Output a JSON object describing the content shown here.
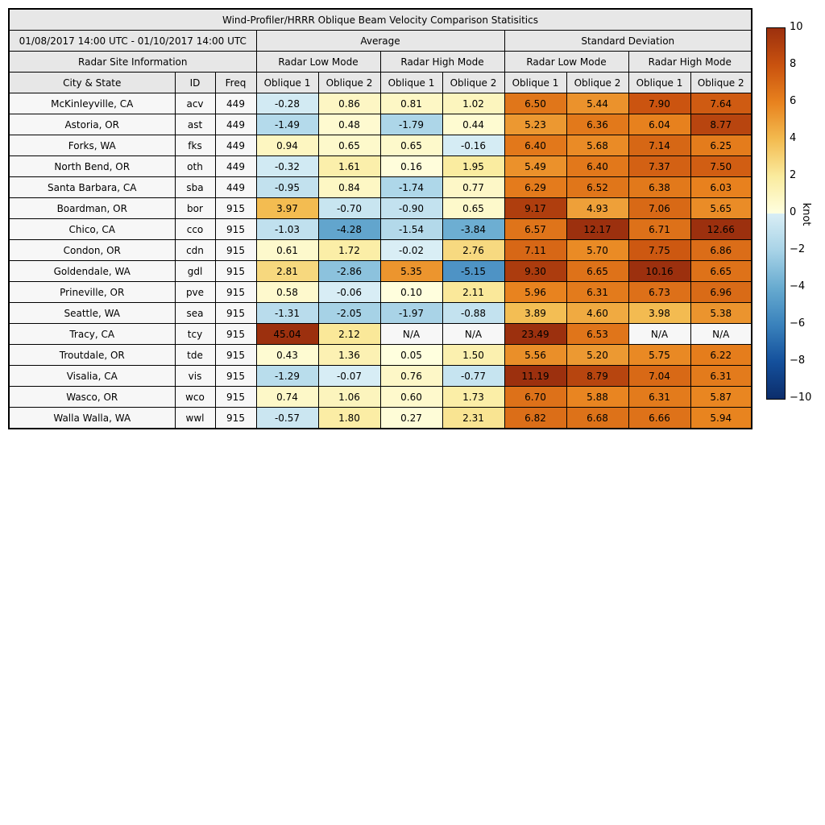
{
  "chart_data": {
    "type": "heatmap",
    "title": "Wind-Profiler/HRRR Oblique Beam Velocity Comparison Statisitics",
    "date_range": "01/08/2017 14:00 UTC - 01/10/2017 14:00 UTC",
    "group_headers": {
      "average": "Average",
      "std": "Standard Deviation"
    },
    "site_info_header": "Radar Site Information",
    "mode_headers": [
      "Radar Low Mode",
      "Radar High Mode",
      "Radar Low Mode",
      "Radar High Mode"
    ],
    "columns": [
      "City & State",
      "ID",
      "Freq",
      "Oblique 1",
      "Oblique 2",
      "Oblique 1",
      "Oblique 2",
      "Oblique 1",
      "Oblique 2",
      "Oblique 1",
      "Oblique 2"
    ],
    "rows": [
      {
        "city": "McKinleyville, CA",
        "id": "acv",
        "freq": "449",
        "values": [
          -0.28,
          0.86,
          0.81,
          1.02,
          6.5,
          5.44,
          7.9,
          7.64
        ]
      },
      {
        "city": "Astoria, OR",
        "id": "ast",
        "freq": "449",
        "values": [
          -1.49,
          0.48,
          -1.79,
          0.44,
          5.23,
          6.36,
          6.04,
          8.77
        ]
      },
      {
        "city": "Forks, WA",
        "id": "fks",
        "freq": "449",
        "values": [
          0.94,
          0.65,
          0.65,
          -0.16,
          6.4,
          5.68,
          7.14,
          6.25
        ]
      },
      {
        "city": "North Bend, OR",
        "id": "oth",
        "freq": "449",
        "values": [
          -0.32,
          1.61,
          0.16,
          1.95,
          5.49,
          6.4,
          7.37,
          7.5
        ]
      },
      {
        "city": "Santa Barbara, CA",
        "id": "sba",
        "freq": "449",
        "values": [
          -0.95,
          0.84,
          -1.74,
          0.77,
          6.29,
          6.52,
          6.38,
          6.03
        ]
      },
      {
        "city": "Boardman, OR",
        "id": "bor",
        "freq": "915",
        "values": [
          3.97,
          -0.7,
          -0.9,
          0.65,
          9.17,
          4.93,
          7.06,
          5.65
        ]
      },
      {
        "city": "Chico, CA",
        "id": "cco",
        "freq": "915",
        "values": [
          -1.03,
          -4.28,
          -1.54,
          -3.84,
          6.57,
          12.17,
          6.71,
          12.66
        ]
      },
      {
        "city": "Condon, OR",
        "id": "cdn",
        "freq": "915",
        "values": [
          0.61,
          1.72,
          -0.02,
          2.76,
          7.11,
          5.7,
          7.75,
          6.86
        ]
      },
      {
        "city": "Goldendale, WA",
        "id": "gdl",
        "freq": "915",
        "values": [
          2.81,
          -2.86,
          5.35,
          -5.15,
          9.3,
          6.65,
          10.16,
          6.65
        ]
      },
      {
        "city": "Prineville, OR",
        "id": "pve",
        "freq": "915",
        "values": [
          0.58,
          -0.06,
          0.1,
          2.11,
          5.96,
          6.31,
          6.73,
          6.96
        ]
      },
      {
        "city": "Seattle, WA",
        "id": "sea",
        "freq": "915",
        "values": [
          -1.31,
          -2.05,
          -1.97,
          -0.88,
          3.89,
          4.6,
          3.98,
          5.38
        ]
      },
      {
        "city": "Tracy, CA",
        "id": "tcy",
        "freq": "915",
        "values": [
          45.04,
          2.12,
          "N/A",
          "N/A",
          23.49,
          6.53,
          "N/A",
          "N/A"
        ]
      },
      {
        "city": "Troutdale, OR",
        "id": "tde",
        "freq": "915",
        "values": [
          0.43,
          1.36,
          0.05,
          1.5,
          5.56,
          5.2,
          5.75,
          6.22
        ]
      },
      {
        "city": "Visalia, CA",
        "id": "vis",
        "freq": "915",
        "values": [
          -1.29,
          -0.07,
          0.76,
          -0.77,
          11.19,
          8.79,
          7.04,
          6.31
        ]
      },
      {
        "city": "Wasco, OR",
        "id": "wco",
        "freq": "915",
        "values": [
          0.74,
          1.06,
          0.6,
          1.73,
          6.7,
          5.88,
          6.31,
          5.87
        ]
      },
      {
        "city": "Walla Walla, WA",
        "id": "wwl",
        "freq": "915",
        "values": [
          -0.57,
          1.8,
          0.27,
          2.31,
          6.82,
          6.68,
          6.66,
          5.94
        ]
      }
    ],
    "na_text": "N/A",
    "na_color": "#f7f7f7",
    "colorbar": {
      "label": "knot",
      "min": -10,
      "max": 10,
      "ticks": [
        10,
        8,
        6,
        4,
        2,
        0,
        -2,
        -4,
        -6,
        -8,
        -10
      ],
      "stops": [
        {
          "v": 10,
          "c": "#9c300e"
        },
        {
          "v": 8,
          "c": "#c9520f"
        },
        {
          "v": 6,
          "c": "#e8821e"
        },
        {
          "v": 4,
          "c": "#f3bb50"
        },
        {
          "v": 2,
          "c": "#faeb9e"
        },
        {
          "v": 0.0001,
          "c": "#ffffe0"
        },
        {
          "v": -0.0001,
          "c": "#d9eef5"
        },
        {
          "v": -2,
          "c": "#a8d3e7"
        },
        {
          "v": -4,
          "c": "#68abd0"
        },
        {
          "v": -6,
          "c": "#3a82bc"
        },
        {
          "v": -8,
          "c": "#14509c"
        },
        {
          "v": -10,
          "c": "#0c2d6b"
        }
      ]
    }
  }
}
